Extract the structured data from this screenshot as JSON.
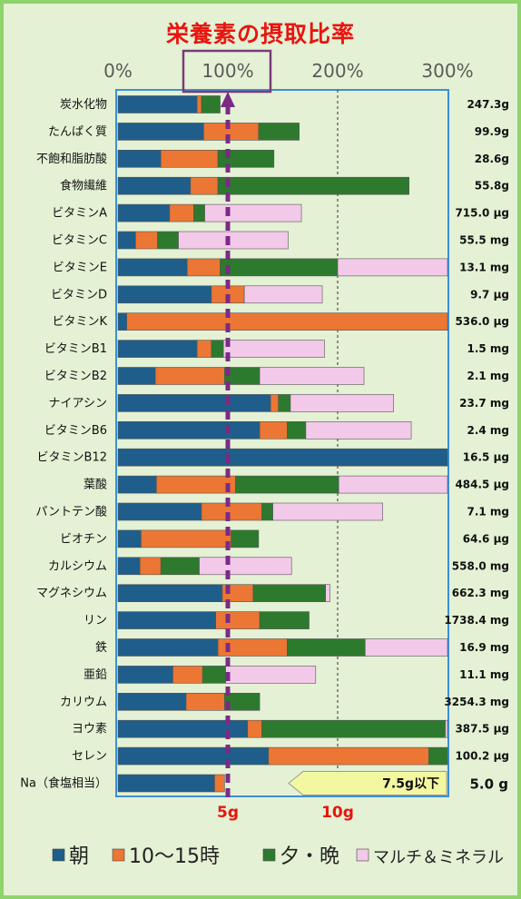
{
  "chart_data": {
    "type": "bar",
    "stacked": true,
    "orientation": "horizontal",
    "title": "栄養素の摂取比率",
    "x_ticks": [
      "0%",
      "100%",
      "200%",
      "300%"
    ],
    "xlim": [
      0,
      300
    ],
    "highlight_tick": "100%",
    "reference_line": 100,
    "grid": "dotted vertical at 200%",
    "legend": "bottom",
    "categories": [
      "炭水化物",
      "たんぱく質",
      "不飽和脂肪酸",
      "食物繊維",
      "ビタミンA",
      "ビタミンC",
      "ビタミンE",
      "ビタミンD",
      "ビタミンK",
      "ビタミンB1",
      "ビタミンB2",
      "ナイアシン",
      "ビタミンB6",
      "ビタミンB12",
      "葉酸",
      "パントテン酸",
      "ビオチン",
      "カルシウム",
      "マグネシウム",
      "リン",
      "鉄",
      "亜鉛",
      "カリウム",
      "ヨウ素",
      "セレン",
      "Na（食塩相当）"
    ],
    "amounts": [
      "247.3g",
      "99.9g",
      "28.6g",
      "55.8g",
      "715.0 μg",
      "55.5 mg",
      "13.1 mg",
      "9.7 μg",
      "536.0 μg",
      "1.5 mg",
      "2.1 mg",
      "23.7 mg",
      "2.4 mg",
      "16.5 μg",
      "484.5 μg",
      "7.1 mg",
      "64.6 μg",
      "558.0 mg",
      "662.3 mg",
      "1738.4 mg",
      "16.9 mg",
      "11.1 mg",
      "3254.3 mg",
      "387.5 μg",
      "100.2 μg",
      "5.0 g"
    ],
    "series": [
      {
        "name": "朝",
        "color": "#1f5e8a",
        "values": [
          72,
          78,
          39,
          66,
          47,
          16,
          63,
          85,
          8,
          72,
          34,
          139,
          129,
          300,
          35,
          76,
          21,
          20,
          95,
          89,
          91,
          50,
          62,
          118,
          137,
          88
        ]
      },
      {
        "name": "10～15時",
        "color": "#ec7634",
        "values": [
          4,
          50,
          52,
          25,
          22,
          20,
          30,
          30,
          292,
          13,
          63,
          7,
          25,
          0,
          72,
          55,
          82,
          19,
          28,
          40,
          63,
          27,
          35,
          13,
          146,
          9
        ]
      },
      {
        "name": "夕・晩",
        "color": "#2d7a2e",
        "values": [
          17,
          37,
          51,
          174,
          10,
          19,
          107,
          0,
          0,
          11,
          32,
          11,
          17,
          0,
          94,
          10,
          25,
          35,
          66,
          45,
          71,
          21,
          32,
          167,
          17,
          0
        ]
      },
      {
        "name": "マルチ＆ミネラル",
        "color": "#f3c9ea",
        "values": [
          0,
          0,
          0,
          0,
          88,
          100,
          100,
          71,
          0,
          92,
          95,
          94,
          96,
          0,
          100,
          100,
          0,
          84,
          4,
          0,
          75,
          82,
          0,
          2,
          0,
          0
        ]
      }
    ],
    "na_scale_ticks": [
      "5g",
      "10g"
    ],
    "na_target": "7.5g以下"
  }
}
